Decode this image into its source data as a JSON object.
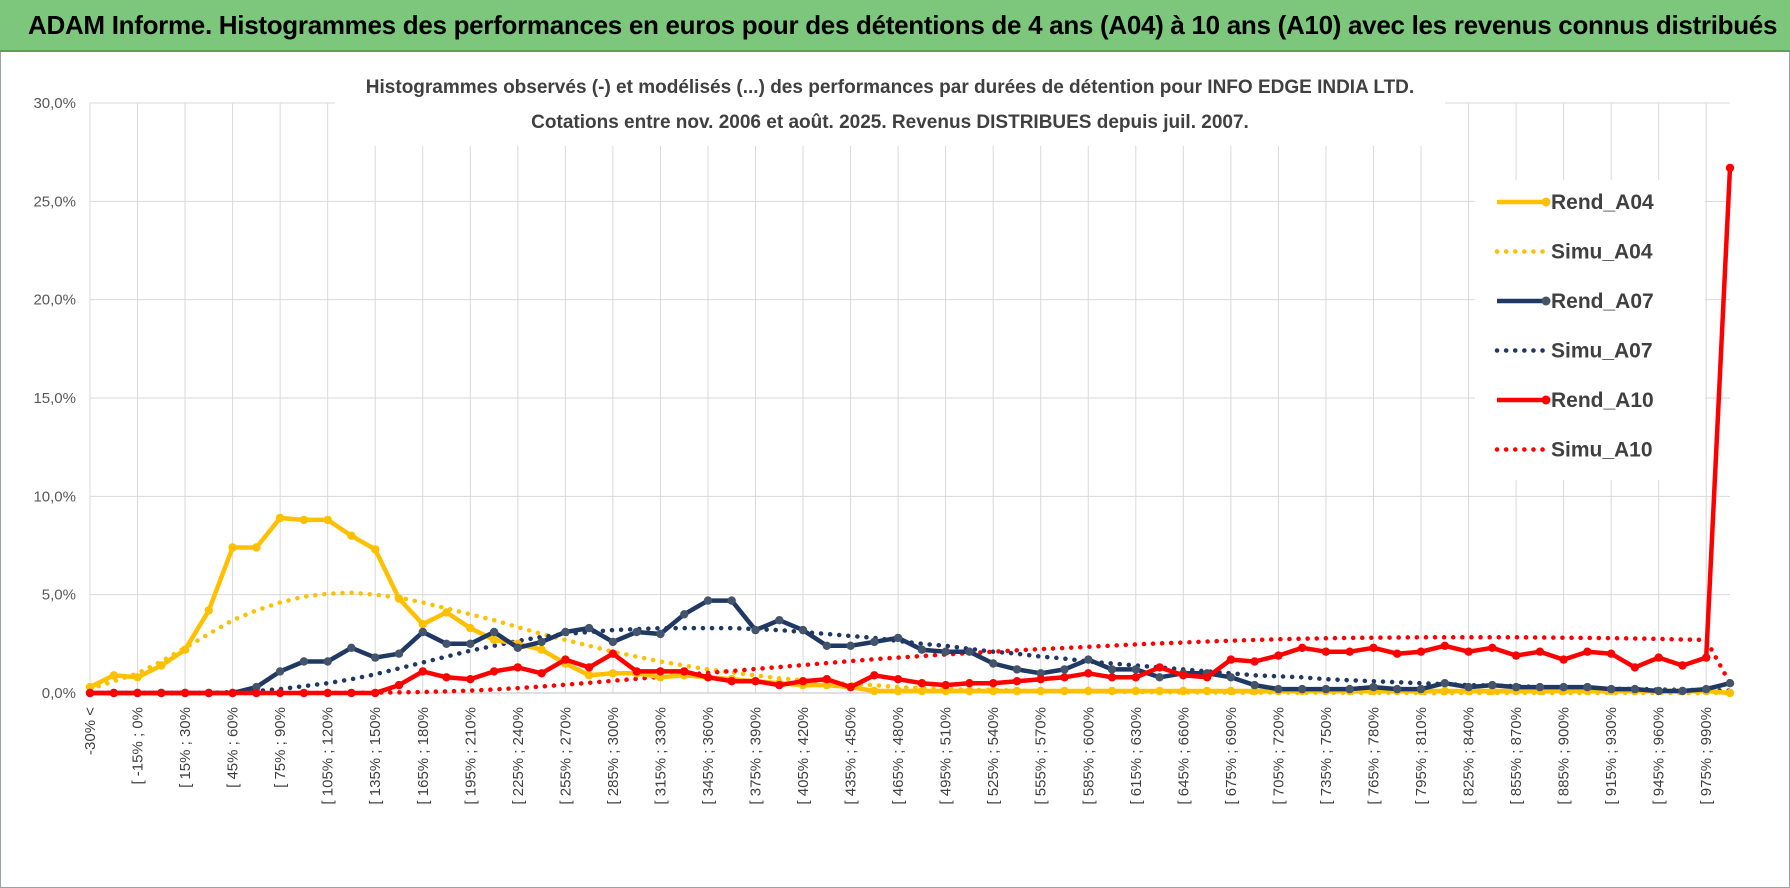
{
  "banner": {
    "title": "ADAM Informe. Histogrammes des performances en euros pour des détentions de 4 ans (A04) à 10 ans (A10) avec les revenus connus distribués"
  },
  "colors": {
    "banner_bg": "#7dc77d",
    "a04": "#ffc000",
    "a07": "#1f3864",
    "a10": "#ff0000",
    "grid": "#d9d9d9"
  },
  "chart_data": {
    "type": "line",
    "title_line1": "Histogrammes observés (-) et modélisés (...) des performances par durées de détention pour INFO EDGE INDIA LTD.",
    "title_line2": "Cotations entre nov. 2006 et août. 2025. Revenus DISTRIBUES depuis juil. 2007.",
    "ylim": [
      0,
      30
    ],
    "yticks": [
      "0,0%",
      "5,0%",
      "10,0%",
      "15,0%",
      "20,0%",
      "25,0%",
      "30,0%"
    ],
    "grid": true,
    "legend_position": "top-right",
    "x_labels": [
      "-30% <",
      "[ -15% ; 0%",
      "[ 15% ; 30%",
      "[ 45% ; 60%",
      "[ 75% ; 90%",
      "[ 105% ; 120%",
      "[ 135% ; 150%",
      "[ 165% ; 180%",
      "[ 195% ; 210%",
      "[ 225% ; 240%",
      "[ 255% ; 270%",
      "[ 285% ; 300%",
      "[ 315% ; 330%",
      "[ 345% ; 360%",
      "[ 375% ; 390%",
      "[ 405% ; 420%",
      "[ 435% ; 450%",
      "[ 465% ; 480%",
      "[ 495% ; 510%",
      "[ 525% ; 540%",
      "[ 555% ; 570%",
      "[ 585% ; 600%",
      "[ 615% ; 630%",
      "[ 645% ; 660%",
      "[ 675% ; 690%",
      "[ 705% ; 720%",
      "[ 735% ; 750%",
      "[ 765% ; 780%",
      "[ 795% ; 810%",
      "[ 825% ; 840%",
      "[ 855% ; 870%",
      "[ 885% ; 900%",
      "[ 915% ; 930%",
      "[ 945% ; 960%",
      "[ 975% ; 990%"
    ],
    "series": [
      {
        "name": "Rend_A04",
        "style": "solid",
        "color": "#ffc000",
        "values": [
          0.3,
          0.9,
          0.8,
          1.4,
          2.2,
          4.2,
          7.4,
          7.4,
          8.9,
          8.8,
          8.8,
          8.0,
          7.3,
          4.8,
          3.5,
          4.1,
          3.3,
          2.7,
          2.5,
          2.2,
          1.5,
          0.9,
          1.0,
          1.0,
          0.8,
          0.9,
          0.8,
          0.7,
          0.6,
          0.5,
          0.4,
          0.4,
          0.3,
          0.1,
          0.1,
          0.1,
          0.1,
          0.1,
          0.1,
          0.1,
          0.1,
          0.1,
          0.1,
          0.1,
          0.1,
          0.1,
          0.1,
          0.1,
          0.1,
          0.1,
          0.1,
          0.1,
          0.1,
          0.1,
          0.1,
          0.1,
          0.1,
          0.1,
          0.1,
          0.1,
          0.1,
          0.1,
          0.1,
          0.1,
          0.1,
          0.1,
          0.1,
          0.1,
          0.1,
          0.0
        ]
      },
      {
        "name": "Simu_A04",
        "style": "dotted",
        "color": "#ffc000",
        "values": [
          0.2,
          0.6,
          1.0,
          1.6,
          2.3,
          3.0,
          3.7,
          4.2,
          4.6,
          4.9,
          5.05,
          5.1,
          5.0,
          4.85,
          4.6,
          4.3,
          4.0,
          3.7,
          3.35,
          3.0,
          2.7,
          2.4,
          2.1,
          1.85,
          1.6,
          1.4,
          1.2,
          1.05,
          0.9,
          0.75,
          0.65,
          0.55,
          0.45,
          0.4,
          0.3,
          0.25,
          0.2,
          0.17,
          0.15,
          0.12,
          0.1,
          0.08,
          0.07,
          0.06,
          0.05,
          0.04,
          0.03,
          0.03,
          0.02,
          0.02,
          0.02,
          0.01,
          0.01,
          0.01,
          0.01,
          0.01,
          0,
          0,
          0,
          0,
          0,
          0,
          0,
          0,
          0,
          0,
          0,
          0,
          0,
          0
        ]
      },
      {
        "name": "Rend_A07",
        "style": "solid",
        "color": "#1f3864",
        "values": [
          0,
          0,
          0,
          0,
          0,
          0,
          0,
          0.3,
          1.1,
          1.6,
          1.6,
          2.3,
          1.8,
          2.0,
          3.1,
          2.5,
          2.5,
          3.1,
          2.3,
          2.6,
          3.1,
          3.3,
          2.6,
          3.1,
          3.0,
          4.0,
          4.7,
          4.7,
          3.2,
          3.7,
          3.2,
          2.4,
          2.4,
          2.6,
          2.8,
          2.2,
          2.1,
          2.1,
          1.5,
          1.2,
          1.0,
          1.2,
          1.7,
          1.2,
          1.2,
          0.8,
          1.0,
          1.0,
          0.8,
          0.4,
          0.2,
          0.2,
          0.2,
          0.2,
          0.3,
          0.2,
          0.2,
          0.5,
          0.3,
          0.4,
          0.3,
          0.3,
          0.3,
          0.3,
          0.2,
          0.2,
          0.1,
          0.1,
          0.2,
          0.5
        ]
      },
      {
        "name": "Simu_A07",
        "style": "dotted",
        "color": "#1f3864",
        "values": [
          0,
          0,
          0,
          0,
          0,
          0,
          0.05,
          0.1,
          0.2,
          0.35,
          0.5,
          0.7,
          0.95,
          1.25,
          1.55,
          1.85,
          2.15,
          2.4,
          2.65,
          2.85,
          3.0,
          3.1,
          3.2,
          3.25,
          3.3,
          3.3,
          3.3,
          3.3,
          3.25,
          3.2,
          3.1,
          3.0,
          2.9,
          2.8,
          2.65,
          2.5,
          2.4,
          2.25,
          2.1,
          2.0,
          1.85,
          1.75,
          1.6,
          1.5,
          1.4,
          1.3,
          1.2,
          1.1,
          1.0,
          0.9,
          0.85,
          0.8,
          0.7,
          0.65,
          0.6,
          0.55,
          0.5,
          0.45,
          0.4,
          0.38,
          0.35,
          0.3,
          0.28,
          0.25,
          0.22,
          0.2,
          0.18,
          0.16,
          0.14,
          0.12
        ]
      },
      {
        "name": "Rend_A10",
        "style": "solid",
        "color": "#ff0000",
        "values": [
          0,
          0,
          0,
          0,
          0,
          0,
          0,
          0,
          0,
          0,
          0,
          0,
          0,
          0.4,
          1.1,
          0.8,
          0.7,
          1.1,
          1.3,
          1.0,
          1.7,
          1.3,
          2.0,
          1.1,
          1.1,
          1.1,
          0.8,
          0.6,
          0.6,
          0.4,
          0.6,
          0.7,
          0.3,
          0.9,
          0.7,
          0.5,
          0.4,
          0.5,
          0.5,
          0.6,
          0.7,
          0.8,
          1.0,
          0.8,
          0.8,
          1.3,
          0.9,
          0.8,
          1.7,
          1.6,
          1.9,
          2.3,
          2.1,
          2.1,
          2.3,
          2.0,
          2.1,
          2.4,
          2.1,
          2.3,
          1.9,
          2.1,
          1.7,
          2.1,
          2.0,
          1.3,
          1.8,
          1.4,
          1.8,
          26.7
        ]
      },
      {
        "name": "Simu_A10",
        "style": "dotted",
        "color": "#ff0000",
        "values": [
          0,
          0,
          0,
          0,
          0,
          0,
          0,
          0,
          0,
          0,
          0,
          0.01,
          0.02,
          0.03,
          0.05,
          0.08,
          0.12,
          0.18,
          0.25,
          0.33,
          0.42,
          0.52,
          0.62,
          0.72,
          0.82,
          0.92,
          1.02,
          1.12,
          1.22,
          1.32,
          1.42,
          1.52,
          1.62,
          1.72,
          1.8,
          1.88,
          1.96,
          2.03,
          2.1,
          2.17,
          2.23,
          2.29,
          2.35,
          2.41,
          2.47,
          2.52,
          2.57,
          2.62,
          2.66,
          2.7,
          2.73,
          2.76,
          2.78,
          2.8,
          2.81,
          2.82,
          2.83,
          2.83,
          2.83,
          2.83,
          2.83,
          2.82,
          2.81,
          2.8,
          2.79,
          2.77,
          2.75,
          2.72,
          2.7,
          0.5
        ]
      }
    ]
  }
}
